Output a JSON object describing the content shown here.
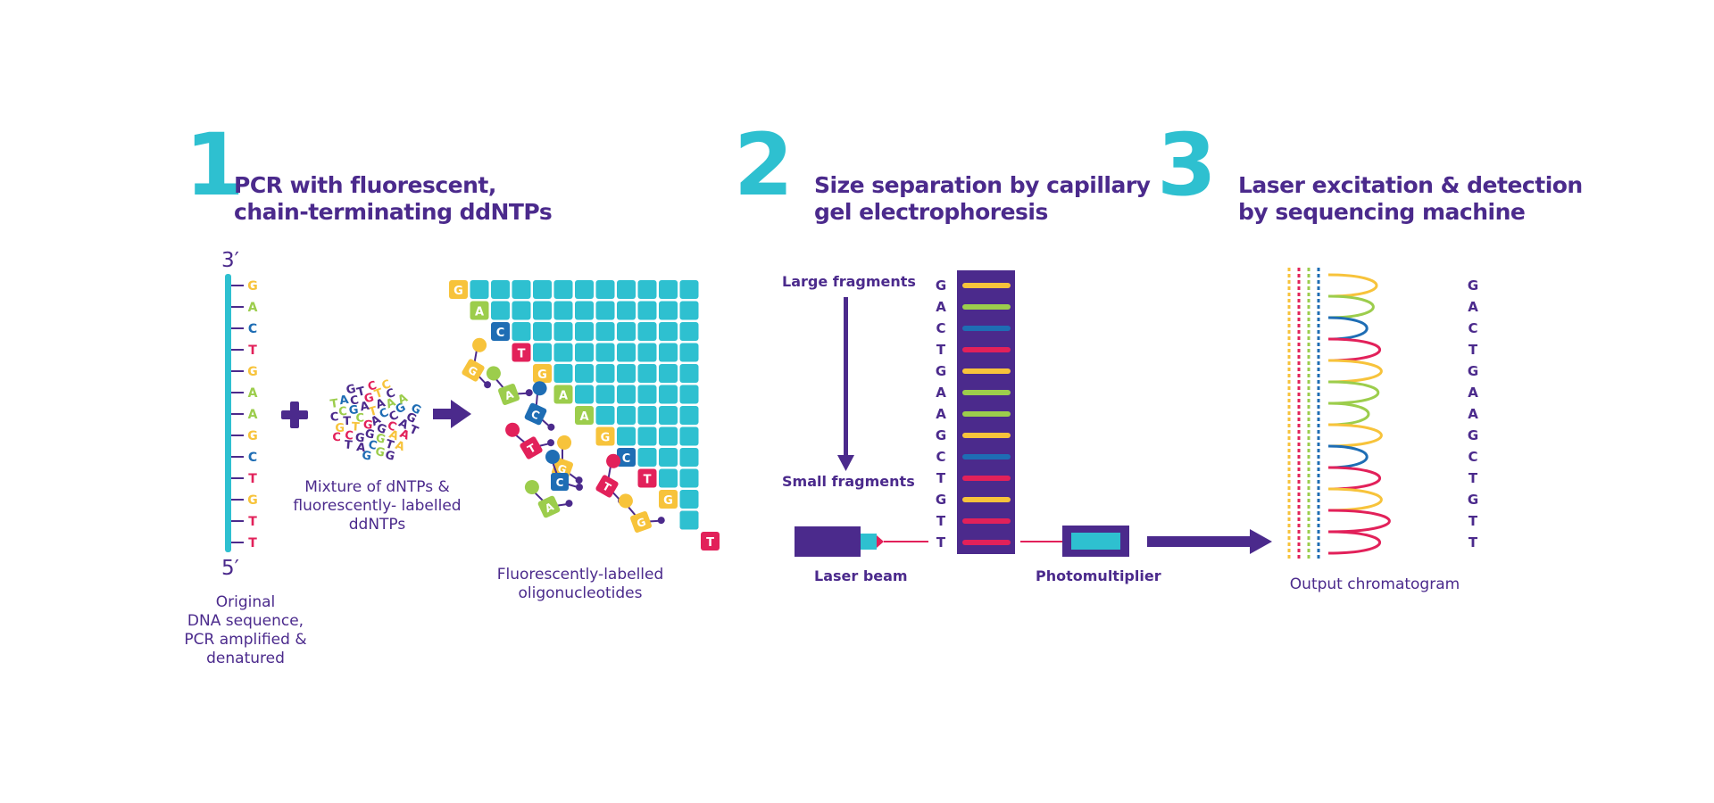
{
  "colors": {
    "A": "#9ccd4c",
    "C": "#1e6db4",
    "G": "#f7c33b",
    "T": "#e2215a",
    "purple": "#4b2a8c",
    "teal": "#2ec0d0"
  },
  "steps": [
    {
      "number": "1",
      "title": "PCR with fluorescent,\nchain-terminating ddNTPs"
    },
    {
      "number": "2",
      "title": "Size separation by capillary\ngel electrophoresis"
    },
    {
      "number": "3",
      "title": "Laser excitation & detection\nby sequencing machine"
    }
  ],
  "step1": {
    "strand_end_top": "3′",
    "strand_end_bottom": "5′",
    "sequence": [
      "G",
      "A",
      "C",
      "T",
      "G",
      "A",
      "A",
      "G",
      "C",
      "T",
      "G",
      "T",
      "T"
    ],
    "strand_caption": "Original\nDNA sequence,\nPCR amplified &\ndenatured",
    "mix_letters": "AGTGCCGACTAGGCGGATACCACTTCGATAGCGAGTCACAGGTCCGTG",
    "mix_caption": "Mixture of dNTPs &\nfluorescently- labelled\nddNTPs",
    "oligo_caption": "Fluorescently-labelled\noligonucleotides",
    "scattered_tiles": [
      "G",
      "A",
      "C",
      "T",
      "G",
      "A",
      "T",
      "G",
      "C"
    ]
  },
  "step2": {
    "large_label": "Large fragments",
    "small_label": "Small fragments",
    "laser_label": "Laser beam",
    "photo_label": "Photomultiplier"
  },
  "step3": {
    "caption": "Output chromatogram"
  },
  "icons": [
    "plus-icon",
    "arrow-right-icon",
    "arrow-down-icon",
    "laser-icon",
    "photomultiplier-icon"
  ]
}
